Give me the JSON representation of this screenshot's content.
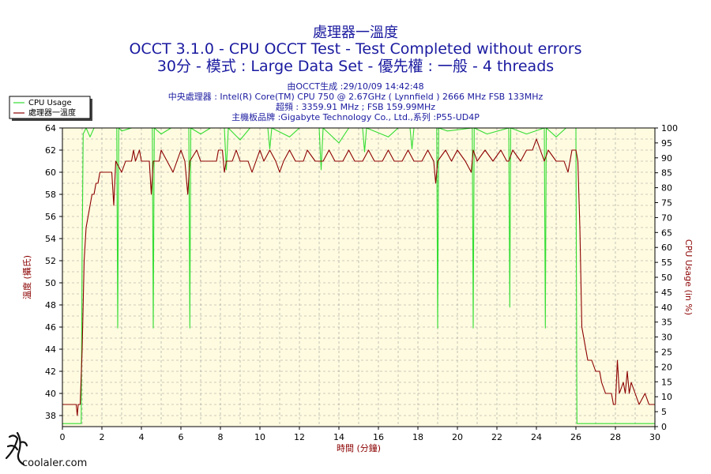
{
  "chart_data": {
    "type": "line",
    "title": "處理器一溫度",
    "subtitle_lines": [
      "OCCT 3.1.0 - CPU OCCT Test - Test Completed without errors",
      "30分 - 模式 : Large Data Set - 優先權 : 一般 - 4 threads"
    ],
    "info_lines": [
      "由OCCT生成 :29/10/09 14:42:48",
      "中央處理器 : Intel(R) Core(TM) CPU 750 @ 2.67GHz ( Lynnfield ) 2666 MHz FSB 133MHz",
      "超頻 : 3359.91 MHz ; FSB 159.99MHz",
      "主機板品牌 :Gigabyte Technology Co., Ltd.,系列 :P55-UD4P"
    ],
    "xlabel": "時間 (分鐘)",
    "ylabel": "溫度 (攝氏)",
    "y2label": "CPU Usage (in %)",
    "xlim": [
      0,
      30
    ],
    "ylim": [
      37,
      64
    ],
    "y2lim": [
      0,
      100
    ],
    "xticks": [
      "0",
      "2",
      "4",
      "6",
      "8",
      "10",
      "12",
      "14",
      "16",
      "18",
      "20",
      "22",
      "24",
      "26",
      "28",
      "30"
    ],
    "yticks": [
      "38",
      "40",
      "42",
      "44",
      "46",
      "48",
      "50",
      "52",
      "54",
      "56",
      "58",
      "60",
      "62",
      "64"
    ],
    "y2ticks": [
      "0",
      "5",
      "10",
      "15",
      "20",
      "25",
      "30",
      "35",
      "40",
      "45",
      "50",
      "55",
      "60",
      "65",
      "70",
      "75",
      "80",
      "85",
      "90",
      "95",
      "100"
    ],
    "grid": true,
    "legend_position": "top-left",
    "series": [
      {
        "name": "CPU Usage",
        "axis": "right",
        "color": "#33dd33",
        "points": [
          [
            0,
            1
          ],
          [
            0.95,
            1
          ],
          [
            1.0,
            60
          ],
          [
            1.05,
            98
          ],
          [
            1.2,
            100
          ],
          [
            1.4,
            97
          ],
          [
            1.6,
            100
          ],
          [
            2.75,
            100
          ],
          [
            2.8,
            33
          ],
          [
            2.85,
            100
          ],
          [
            3.0,
            99
          ],
          [
            3.5,
            100
          ],
          [
            4.55,
            100
          ],
          [
            4.6,
            33
          ],
          [
            4.65,
            100
          ],
          [
            5.0,
            98
          ],
          [
            5.5,
            100
          ],
          [
            6.4,
            100
          ],
          [
            6.45,
            33
          ],
          [
            6.5,
            100
          ],
          [
            7.0,
            98
          ],
          [
            7.5,
            100
          ],
          [
            8.2,
            100
          ],
          [
            8.3,
            86
          ],
          [
            8.4,
            100
          ],
          [
            9.0,
            96
          ],
          [
            9.5,
            100
          ],
          [
            10.4,
            100
          ],
          [
            10.5,
            93
          ],
          [
            10.6,
            100
          ],
          [
            11.5,
            97
          ],
          [
            12.0,
            100
          ],
          [
            13.0,
            100
          ],
          [
            13.1,
            86
          ],
          [
            13.2,
            100
          ],
          [
            14.0,
            95
          ],
          [
            14.5,
            100
          ],
          [
            15.2,
            100
          ],
          [
            15.3,
            92
          ],
          [
            15.4,
            100
          ],
          [
            16.5,
            97
          ],
          [
            17.0,
            100
          ],
          [
            17.6,
            100
          ],
          [
            17.7,
            93
          ],
          [
            17.8,
            100
          ],
          [
            18.95,
            100
          ],
          [
            19.0,
            33
          ],
          [
            19.05,
            100
          ],
          [
            19.5,
            99
          ],
          [
            20.75,
            100
          ],
          [
            20.8,
            33
          ],
          [
            20.85,
            100
          ],
          [
            21.5,
            98
          ],
          [
            22.6,
            100
          ],
          [
            22.65,
            40
          ],
          [
            22.7,
            100
          ],
          [
            23.5,
            98
          ],
          [
            24.4,
            100
          ],
          [
            24.45,
            33
          ],
          [
            24.5,
            100
          ],
          [
            25.0,
            97
          ],
          [
            25.5,
            100
          ],
          [
            26.0,
            100
          ],
          [
            26.05,
            1
          ],
          [
            30,
            1
          ]
        ]
      },
      {
        "name": "處理器一溫度",
        "axis": "left",
        "color": "#8b0000",
        "points": [
          [
            0,
            39
          ],
          [
            0.7,
            39
          ],
          [
            0.75,
            38
          ],
          [
            0.8,
            39
          ],
          [
            0.9,
            39
          ],
          [
            1.0,
            44
          ],
          [
            1.1,
            52
          ],
          [
            1.2,
            55
          ],
          [
            1.3,
            56
          ],
          [
            1.4,
            57
          ],
          [
            1.5,
            58
          ],
          [
            1.6,
            58
          ],
          [
            1.7,
            59
          ],
          [
            1.8,
            59
          ],
          [
            1.9,
            60
          ],
          [
            2.0,
            60
          ],
          [
            2.2,
            60
          ],
          [
            2.5,
            60
          ],
          [
            2.6,
            57
          ],
          [
            2.7,
            61
          ],
          [
            3.0,
            60
          ],
          [
            3.2,
            61
          ],
          [
            3.5,
            61
          ],
          [
            3.6,
            62
          ],
          [
            3.7,
            61
          ],
          [
            3.9,
            62
          ],
          [
            4.0,
            61
          ],
          [
            4.4,
            61
          ],
          [
            4.5,
            58
          ],
          [
            4.6,
            61
          ],
          [
            4.9,
            61
          ],
          [
            5.0,
            62
          ],
          [
            5.3,
            61
          ],
          [
            5.6,
            60
          ],
          [
            5.8,
            61
          ],
          [
            6.0,
            62
          ],
          [
            6.2,
            61
          ],
          [
            6.35,
            58
          ],
          [
            6.45,
            61
          ],
          [
            6.8,
            62
          ],
          [
            7.0,
            61
          ],
          [
            7.5,
            61
          ],
          [
            7.8,
            61
          ],
          [
            7.9,
            62
          ],
          [
            8.1,
            62
          ],
          [
            8.2,
            60
          ],
          [
            8.3,
            61
          ],
          [
            8.6,
            61
          ],
          [
            8.8,
            62
          ],
          [
            9.0,
            61
          ],
          [
            9.4,
            61
          ],
          [
            9.6,
            60
          ],
          [
            9.8,
            61
          ],
          [
            10.0,
            62
          ],
          [
            10.2,
            61
          ],
          [
            10.5,
            62
          ],
          [
            10.8,
            61
          ],
          [
            11.0,
            60
          ],
          [
            11.2,
            61
          ],
          [
            11.5,
            62
          ],
          [
            11.8,
            61
          ],
          [
            12.2,
            61
          ],
          [
            12.4,
            62
          ],
          [
            12.8,
            61
          ],
          [
            13.2,
            61
          ],
          [
            13.5,
            62
          ],
          [
            13.8,
            61
          ],
          [
            14.2,
            61
          ],
          [
            14.5,
            62
          ],
          [
            14.8,
            61
          ],
          [
            15.2,
            61
          ],
          [
            15.5,
            62
          ],
          [
            15.8,
            61
          ],
          [
            16.2,
            61
          ],
          [
            16.5,
            62
          ],
          [
            16.8,
            61
          ],
          [
            17.2,
            61
          ],
          [
            17.5,
            62
          ],
          [
            17.8,
            61
          ],
          [
            18.2,
            61
          ],
          [
            18.5,
            62
          ],
          [
            18.8,
            61
          ],
          [
            18.9,
            59
          ],
          [
            19.0,
            61
          ],
          [
            19.4,
            62
          ],
          [
            19.7,
            61
          ],
          [
            20.0,
            62
          ],
          [
            20.4,
            61
          ],
          [
            20.7,
            60
          ],
          [
            20.8,
            62
          ],
          [
            21.0,
            61
          ],
          [
            21.4,
            62
          ],
          [
            21.8,
            61
          ],
          [
            22.2,
            62
          ],
          [
            22.5,
            61
          ],
          [
            22.6,
            61
          ],
          [
            22.8,
            62
          ],
          [
            23.2,
            61
          ],
          [
            23.5,
            62
          ],
          [
            23.8,
            62
          ],
          [
            24.0,
            63
          ],
          [
            24.2,
            62
          ],
          [
            24.4,
            61
          ],
          [
            24.6,
            62
          ],
          [
            25.0,
            61
          ],
          [
            25.4,
            61
          ],
          [
            25.6,
            60
          ],
          [
            25.8,
            62
          ],
          [
            26.0,
            62
          ],
          [
            26.1,
            61
          ],
          [
            26.2,
            55
          ],
          [
            26.3,
            46
          ],
          [
            26.4,
            45
          ],
          [
            26.5,
            44
          ],
          [
            26.6,
            43
          ],
          [
            26.8,
            43
          ],
          [
            27.0,
            42
          ],
          [
            27.2,
            42
          ],
          [
            27.3,
            41
          ],
          [
            27.5,
            40
          ],
          [
            27.8,
            40
          ],
          [
            27.9,
            39
          ],
          [
            28.0,
            39
          ],
          [
            28.1,
            43
          ],
          [
            28.2,
            40
          ],
          [
            28.4,
            41
          ],
          [
            28.5,
            40
          ],
          [
            28.6,
            42
          ],
          [
            28.7,
            40
          ],
          [
            28.8,
            41
          ],
          [
            29.0,
            40
          ],
          [
            29.2,
            39
          ],
          [
            29.5,
            40
          ],
          [
            29.7,
            39
          ],
          [
            30,
            39
          ]
        ]
      }
    ]
  },
  "watermark": "coolaler.com"
}
